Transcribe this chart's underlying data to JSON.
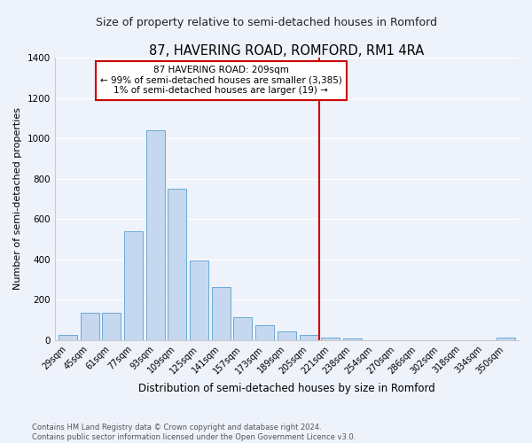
{
  "title": "87, HAVERING ROAD, ROMFORD, RM1 4RA",
  "subtitle": "Size of property relative to semi-detached houses in Romford",
  "xlabel": "Distribution of semi-detached houses by size in Romford",
  "ylabel": "Number of semi-detached properties",
  "footer": "Contains HM Land Registry data © Crown copyright and database right 2024.\nContains public sector information licensed under the Open Government Licence v3.0.",
  "categories": [
    "29sqm",
    "45sqm",
    "61sqm",
    "77sqm",
    "93sqm",
    "109sqm",
    "125sqm",
    "141sqm",
    "157sqm",
    "173sqm",
    "189sqm",
    "205sqm",
    "221sqm",
    "238sqm",
    "254sqm",
    "270sqm",
    "286sqm",
    "302sqm",
    "318sqm",
    "334sqm",
    "350sqm"
  ],
  "values": [
    28,
    135,
    135,
    540,
    1040,
    750,
    395,
    265,
    115,
    75,
    42,
    28,
    14,
    10,
    0,
    0,
    0,
    0,
    0,
    0,
    14
  ],
  "bar_color": "#c5d8f0",
  "bar_edge_color": "#6aaad4",
  "vline_color": "#cc0000",
  "annotation_title": "87 HAVERING ROAD: 209sqm",
  "annotation_line1": "← 99% of semi-detached houses are smaller (3,385)",
  "annotation_line2": "1% of semi-detached houses are larger (19) →",
  "annotation_box_color": "#cc0000",
  "ylim": [
    0,
    1400
  ],
  "yticks": [
    0,
    200,
    400,
    600,
    800,
    1000,
    1200,
    1400
  ],
  "bg_color": "#eef2fb",
  "title_fontsize": 10.5,
  "subtitle_fontsize": 9,
  "tick_fontsize": 7,
  "ylabel_fontsize": 8,
  "xlabel_fontsize": 8.5
}
